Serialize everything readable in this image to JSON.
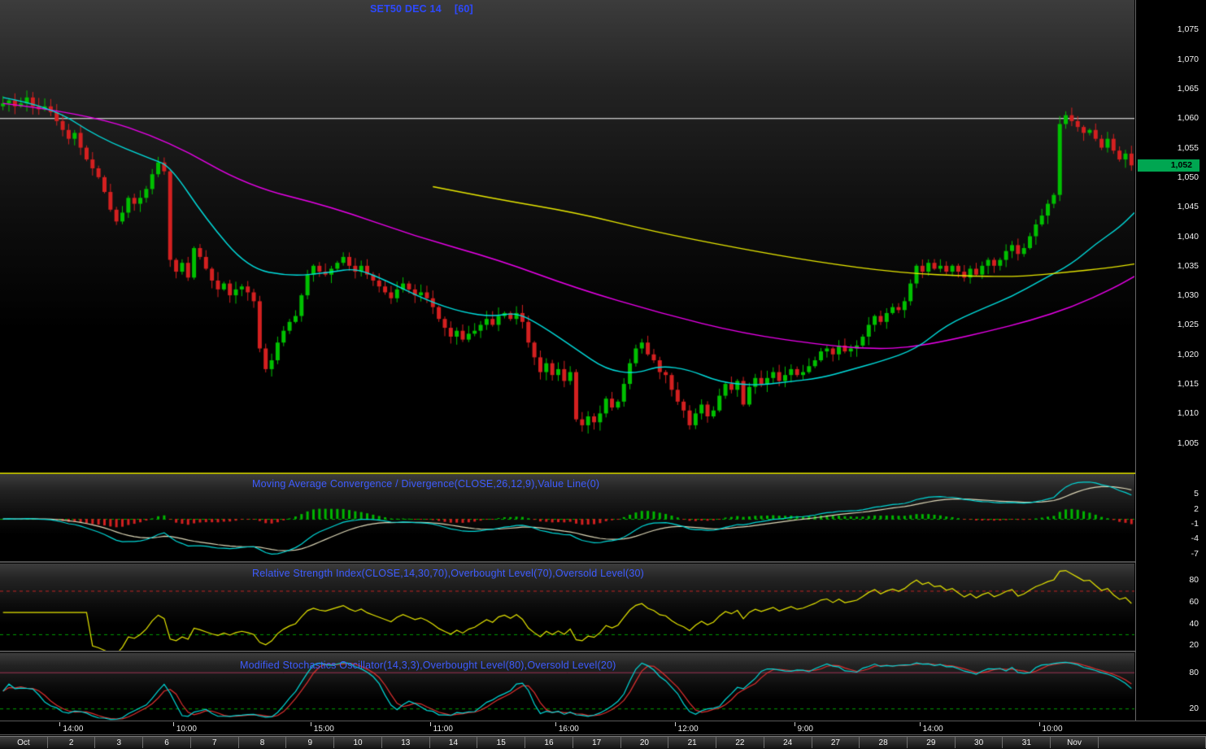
{
  "window": {
    "symbol_title": "SET50 DEC 14",
    "interval_label": "[60]"
  },
  "colors": {
    "title_blue": "#2d49ff",
    "indicator_title_blue": "#3e5cff",
    "candle_up": "#00c000",
    "candle_down": "#d42020",
    "ma_magenta": "#ee00ee",
    "ma_cyan": "#00dede",
    "ma_yellow": "#e8e800",
    "reference_line": "#ffffff",
    "last_price_tag": "#00a651",
    "macd_line": "#00d8d8",
    "macd_signal": "#ded8b8",
    "hist_up": "#00b400",
    "hist_down": "#d02020",
    "value_line_green": "#00a000",
    "rsi_line": "#e6e600",
    "overbought_red": "#c22222",
    "oversold_green": "#00a000",
    "stoch_k": "#00d8d8",
    "stoch_d": "#e03030",
    "stoch_overbought_line": "#a03455"
  },
  "chart_data": {
    "type": "candlestick",
    "title": "SET50 DEC 14",
    "interval_minutes": 60,
    "first_open": 1062.0,
    "closes": [
      1062.5,
      1063,
      1062,
      1062.5,
      1063.5,
      1062,
      1061.5,
      1062,
      1061,
      1059.5,
      1058,
      1056.5,
      1057.5,
      1055,
      1053,
      1051.5,
      1050,
      1047.5,
      1044.5,
      1042.5,
      1044,
      1046.5,
      1045.5,
      1046.5,
      1048,
      1050.5,
      1052.5,
      1051,
      1036,
      1034,
      1035.5,
      1033,
      1038,
      1036.5,
      1034.5,
      1032.5,
      1031,
      1032,
      1030,
      1031,
      1031.5,
      1030.5,
      1029,
      1021,
      1017.5,
      1019,
      1022,
      1024,
      1025.5,
      1026.5,
      1030,
      1033.5,
      1035,
      1034,
      1033.5,
      1034.5,
      1035.5,
      1036.5,
      1035,
      1034,
      1035,
      1033.5,
      1032.5,
      1031.5,
      1030.5,
      1029.5,
      1031,
      1032,
      1031,
      1030,
      1030.5,
      1029.5,
      1028,
      1026,
      1024.5,
      1023,
      1024,
      1022.5,
      1023.5,
      1024,
      1025,
      1026,
      1025,
      1026.5,
      1027,
      1026,
      1027,
      1025.5,
      1022,
      1019.5,
      1017,
      1018.5,
      1016.5,
      1017.5,
      1015.5,
      1017,
      1009,
      1008,
      1009.5,
      1008.5,
      1010,
      1012.5,
      1011,
      1012,
      1015,
      1018.5,
      1021,
      1022,
      1020,
      1019,
      1017,
      1016.5,
      1014,
      1012,
      1010.5,
      1008,
      1010,
      1011.5,
      1009.5,
      1010.5,
      1013,
      1015,
      1014,
      1015.5,
      1011.5,
      1014.5,
      1016,
      1015,
      1016,
      1017,
      1015.5,
      1016.5,
      1017.5,
      1016.5,
      1017,
      1018,
      1019,
      1020.5,
      1021,
      1020,
      1021.5,
      1020.5,
      1021,
      1021.5,
      1023,
      1025,
      1026.5,
      1025.5,
      1027,
      1028,
      1027.5,
      1029,
      1032,
      1035,
      1034,
      1035.5,
      1034.5,
      1035,
      1034,
      1035,
      1034,
      1033,
      1034.5,
      1033.5,
      1035,
      1036,
      1035,
      1036,
      1037.5,
      1038.5,
      1037,
      1038,
      1040,
      1042,
      1043.5,
      1045.5,
      1047,
      1059,
      1060.5,
      1059.5,
      1058.5,
      1057.5,
      1058,
      1056.5,
      1055,
      1056.5,
      1054.5,
      1053,
      1054,
      1052
    ],
    "price_axis": {
      "min": 1000,
      "max": 1080,
      "labels": [
        "1,075",
        "1,070",
        "1,065",
        "1,060",
        "1,055",
        "1,050",
        "1,045",
        "1,040",
        "1,035",
        "1,030",
        "1,025",
        "1,020",
        "1,015",
        "1,010",
        "1,005"
      ],
      "reference_line": 1060,
      "last_price": 1052,
      "last_price_label": "1,052"
    },
    "overlays": {
      "magenta_ma": {
        "points": [
          [
            0,
            1062.5
          ],
          [
            14,
            1060.8
          ],
          [
            28,
            1056.0
          ],
          [
            41,
            1048.5
          ],
          [
            55,
            1045.0
          ],
          [
            69,
            1040.0
          ],
          [
            83,
            1036.0
          ],
          [
            96,
            1031.2
          ],
          [
            110,
            1027.0
          ],
          [
            124,
            1023.5
          ],
          [
            138,
            1021.5
          ],
          [
            146,
            1020.9
          ],
          [
            152,
            1021.2
          ],
          [
            158,
            1022.3
          ],
          [
            165,
            1023.9
          ],
          [
            172,
            1025.7
          ],
          [
            179,
            1028.0
          ],
          [
            186,
            1031.2
          ],
          [
            190,
            1033.2
          ]
        ]
      },
      "cyan_ma": {
        "points": [
          [
            0,
            1063.5
          ],
          [
            8,
            1062.0
          ],
          [
            16,
            1056.7
          ],
          [
            25,
            1053.0
          ],
          [
            28,
            1051.9
          ],
          [
            34,
            1042.9
          ],
          [
            41,
            1034.6
          ],
          [
            48,
            1033.2
          ],
          [
            55,
            1033.9
          ],
          [
            59,
            1034.6
          ],
          [
            64,
            1032.6
          ],
          [
            71,
            1029.1
          ],
          [
            77,
            1027.1
          ],
          [
            82,
            1026.4
          ],
          [
            86,
            1027.1
          ],
          [
            90,
            1025.0
          ],
          [
            96,
            1020.9
          ],
          [
            101,
            1017.4
          ],
          [
            106,
            1016.7
          ],
          [
            110,
            1018.1
          ],
          [
            115,
            1017.4
          ],
          [
            120,
            1015.3
          ],
          [
            126,
            1014.7
          ],
          [
            131,
            1015.3
          ],
          [
            137,
            1016.0
          ],
          [
            142,
            1017.4
          ],
          [
            147,
            1018.8
          ],
          [
            153,
            1020.9
          ],
          [
            158,
            1025.0
          ],
          [
            164,
            1027.7
          ],
          [
            169,
            1029.8
          ],
          [
            174,
            1032.6
          ],
          [
            179,
            1035.3
          ],
          [
            183,
            1038.7
          ],
          [
            187,
            1041.5
          ],
          [
            190,
            1044.0
          ]
        ]
      },
      "yellow_ma": {
        "points": [
          [
            72,
            1048.4
          ],
          [
            82,
            1046.4
          ],
          [
            96,
            1044.0
          ],
          [
            109,
            1040.8
          ],
          [
            123,
            1038.0
          ],
          [
            136,
            1035.7
          ],
          [
            150,
            1033.8
          ],
          [
            163,
            1033.2
          ],
          [
            171,
            1033.2
          ],
          [
            178,
            1033.9
          ],
          [
            185,
            1034.6
          ],
          [
            190,
            1035.3
          ]
        ]
      }
    },
    "indicators": [
      {
        "id": "macd",
        "title": "Moving Average Convergence / Divergence(CLOSE,26,12,9),Value Line(0)",
        "fast": 12,
        "slow": 26,
        "signal": 9,
        "value_line": 0,
        "range": [
          -8.5,
          9
        ],
        "axis_labels": [
          "5",
          "2",
          "-1",
          "-4",
          "-7"
        ]
      },
      {
        "id": "rsi",
        "title": "Relative Strength Index(CLOSE,14,30,70),Overbought Level(70),Oversold Level(30)",
        "period": 14,
        "overbought": 70,
        "oversold": 30,
        "range": [
          15,
          95
        ],
        "axis_labels": [
          "80",
          "60",
          "40",
          "20"
        ]
      },
      {
        "id": "stoch",
        "title": "Modified Stochastics Oscillator(14,3,3),Overbought Level(80),Oversold Level(20)",
        "k": 14,
        "k_smooth": 3,
        "d_smooth": 3,
        "overbought": 80,
        "oversold": 20,
        "range": [
          0,
          112
        ],
        "axis_labels": [
          "80",
          "20"
        ]
      }
    ],
    "time_axis": {
      "bars_per_day": 8,
      "labels": [
        {
          "text": "14:00",
          "bar": 10
        },
        {
          "text": "10:00",
          "bar": 29
        },
        {
          "text": "15:00",
          "bar": 52
        },
        {
          "text": "11:00",
          "bar": 72
        },
        {
          "text": "16:00",
          "bar": 93
        },
        {
          "text": "12:00",
          "bar": 113
        },
        {
          "text": "9:00",
          "bar": 133
        },
        {
          "text": "14:00",
          "bar": 154
        },
        {
          "text": "10:00",
          "bar": 174
        }
      ],
      "dates": [
        "Oct",
        "2",
        "3",
        "6",
        "7",
        "8",
        "9",
        "10",
        "13",
        "14",
        "15",
        "16",
        "17",
        "20",
        "21",
        "22",
        "24",
        "27",
        "28",
        "29",
        "30",
        "31",
        "Nov"
      ]
    }
  }
}
